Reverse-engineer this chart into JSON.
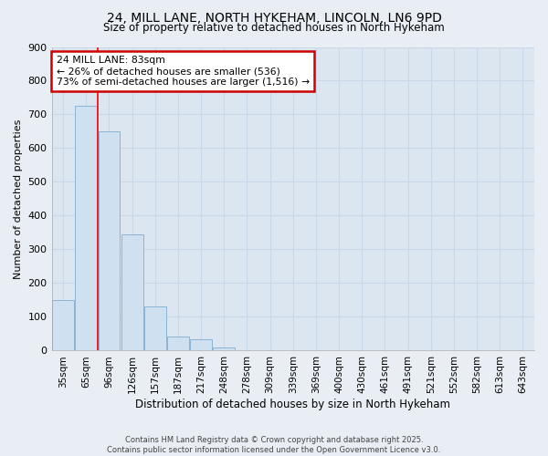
{
  "title_line1": "24, MILL LANE, NORTH HYKEHAM, LINCOLN, LN6 9PD",
  "title_line2": "Size of property relative to detached houses in North Hykeham",
  "xlabel": "Distribution of detached houses by size in North Hykeham",
  "ylabel": "Number of detached properties",
  "bar_values": [
    150,
    725,
    650,
    345,
    130,
    42,
    35,
    10,
    0,
    0,
    0,
    0,
    0,
    0,
    0,
    0,
    0,
    0,
    0,
    0,
    0
  ],
  "categories": [
    "35sqm",
    "65sqm",
    "96sqm",
    "126sqm",
    "157sqm",
    "187sqm",
    "217sqm",
    "248sqm",
    "278sqm",
    "309sqm",
    "339sqm",
    "369sqm",
    "400sqm",
    "430sqm",
    "461sqm",
    "491sqm",
    "521sqm",
    "552sqm",
    "582sqm",
    "613sqm",
    "643sqm"
  ],
  "bar_color": "#cfe0f0",
  "bar_edge_color": "#8ab4d4",
  "ylim": [
    0,
    900
  ],
  "yticks": [
    0,
    100,
    200,
    300,
    400,
    500,
    600,
    700,
    800,
    900
  ],
  "red_line_x": 1.5,
  "annotation_text": "24 MILL LANE: 83sqm\n← 26% of detached houses are smaller (536)\n73% of semi-detached houses are larger (1,516) →",
  "annotation_box_color": "#ffffff",
  "annotation_edge_color": "#cc0000",
  "footer_line1": "Contains HM Land Registry data © Crown copyright and database right 2025.",
  "footer_line2": "Contains public sector information licensed under the Open Government Licence v3.0.",
  "background_color": "#e8eef4",
  "plot_bg_color": "#dce6f0",
  "grid_color": "#c8d8e8"
}
